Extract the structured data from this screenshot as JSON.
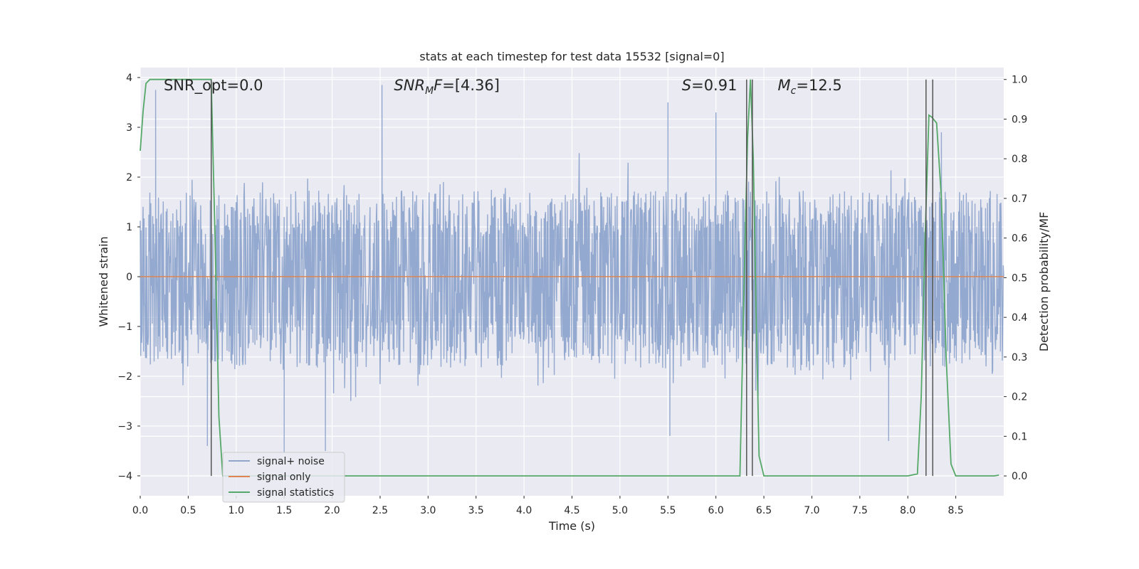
{
  "chart_data": {
    "type": "line",
    "title": "stats at each timestep for test data 15532 [signal=0]",
    "xlabel": "Time (s)",
    "ylabel": "Whitened strain",
    "ylabel_right": "Detection probability/MF",
    "xlim": [
      0,
      9
    ],
    "ylim": [
      -4.4,
      4.2
    ],
    "ylim_right": [
      -0.05,
      1.03
    ],
    "x_ticks": [
      0.0,
      0.5,
      1.0,
      1.5,
      2.0,
      2.5,
      3.0,
      3.5,
      4.0,
      4.5,
      5.0,
      5.5,
      6.0,
      6.5,
      7.0,
      7.5,
      8.0,
      8.5
    ],
    "x_tick_labels": [
      "0.0",
      "0.5",
      "1.0",
      "1.5",
      "2.0",
      "2.5",
      "3.0",
      "3.5",
      "4.0",
      "4.5",
      "5.0",
      "5.5",
      "6.0",
      "6.5",
      "7.0",
      "7.5",
      "8.0",
      "8.5"
    ],
    "y_ticks": [
      -4,
      -3,
      -2,
      -1,
      0,
      1,
      2,
      3,
      4
    ],
    "y_tick_labels": [
      "−4",
      "−3",
      "−2",
      "−1",
      "0",
      "1",
      "2",
      "3",
      "4"
    ],
    "y2_ticks": [
      0.0,
      0.1,
      0.2,
      0.3,
      0.4,
      0.5,
      0.6,
      0.7,
      0.8,
      0.9,
      1.0
    ],
    "y2_tick_labels": [
      "0.0",
      "0.1",
      "0.2",
      "0.3",
      "0.4",
      "0.5",
      "0.6",
      "0.7",
      "0.8",
      "0.9",
      "1.0"
    ],
    "grid": true,
    "legend_position": "lower-left",
    "annotations": [
      {
        "text": "SNR_opt=0.0",
        "x": 0.2,
        "y": 3.8
      },
      {
        "text": "SNR_MF=[4.36]",
        "x": 2.6,
        "y": 3.8
      },
      {
        "text": "S=0.91",
        "x": 5.6,
        "y": 3.8
      },
      {
        "text": "M_c=12.5",
        "x": 6.6,
        "y": 3.8
      }
    ],
    "series": [
      {
        "name": "signal+ noise",
        "color": "#8fa5cc",
        "axis": "left",
        "kind": "noise",
        "x_range": [
          0,
          9
        ],
        "typical_min": -1.6,
        "typical_max": 1.5,
        "min": -3.6,
        "max": 3.85,
        "spikes": [
          {
            "x": 0.16,
            "y": 3.75
          },
          {
            "x": 2.52,
            "y": 3.85
          },
          {
            "x": 5.5,
            "y": 3.5
          },
          {
            "x": 6.0,
            "y": 3.3
          },
          {
            "x": 8.35,
            "y": 2.9
          },
          {
            "x": 1.5,
            "y": -3.55
          },
          {
            "x": 1.93,
            "y": -3.5
          },
          {
            "x": 5.52,
            "y": -3.2
          },
          {
            "x": 7.8,
            "y": -3.3
          },
          {
            "x": 0.7,
            "y": -3.4
          }
        ]
      },
      {
        "name": "signal only",
        "color": "#dd8452",
        "axis": "left",
        "x": [
          0,
          9
        ],
        "y": [
          0,
          0
        ]
      },
      {
        "name": "signal statistics",
        "color": "#55a868",
        "axis": "right",
        "x": [
          0.0,
          0.03,
          0.06,
          0.1,
          0.15,
          0.2,
          0.3,
          0.4,
          0.5,
          0.6,
          0.7,
          0.74,
          0.78,
          0.82,
          0.86,
          0.9,
          1.0,
          2.0,
          3.0,
          4.0,
          5.0,
          5.5,
          6.0,
          6.25,
          6.3,
          6.33,
          6.36,
          6.39,
          6.42,
          6.45,
          6.5,
          7.0,
          7.5,
          8.0,
          8.1,
          8.14,
          8.18,
          8.22,
          8.25,
          8.3,
          8.35,
          8.4,
          8.45,
          8.5,
          8.6,
          8.7,
          8.8,
          8.9,
          8.95
        ],
        "y": [
          0.82,
          0.92,
          0.99,
          1.0,
          1.0,
          1.0,
          1.0,
          1.0,
          1.0,
          1.0,
          1.0,
          1.0,
          0.6,
          0.15,
          0.0,
          0.0,
          0.0,
          0.0,
          0.0,
          0.0,
          0.0,
          0.0,
          0.0,
          0.0,
          0.55,
          0.85,
          1.0,
          0.8,
          0.4,
          0.05,
          0.0,
          0.0,
          0.0,
          0.0,
          0.005,
          0.2,
          0.6,
          0.91,
          0.905,
          0.89,
          0.7,
          0.3,
          0.03,
          0.0,
          0.0,
          0.0,
          0.0,
          0.0,
          0.002
        ]
      }
    ],
    "vertical_markers": [
      {
        "x": 0.74,
        "color": "#555555"
      },
      {
        "x": 6.32,
        "color": "#555555"
      },
      {
        "x": 6.38,
        "color": "#555555"
      },
      {
        "x": 8.19,
        "color": "#555555"
      },
      {
        "x": 8.26,
        "color": "#555555"
      }
    ],
    "colors": {
      "plot_background": "#eaeaf2",
      "grid": "#ffffff",
      "text": "#262626"
    }
  }
}
